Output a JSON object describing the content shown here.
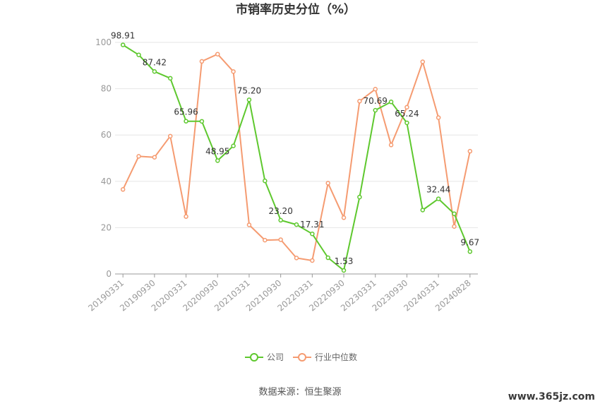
{
  "chart_data": {
    "type": "line",
    "title": "市销率历史分位（%）",
    "ylim": [
      0,
      100
    ],
    "yticks": [
      0,
      20,
      40,
      60,
      80,
      100
    ],
    "grid": true,
    "legend_position": "bottom",
    "x_tick_labels": [
      "20190331",
      "20190930",
      "20200331",
      "20200930",
      "20210331",
      "20210930",
      "20220331",
      "20220930",
      "20230331",
      "20230930",
      "20240331",
      "20240828"
    ],
    "x_tick_indices": [
      0,
      2,
      4,
      6,
      8,
      10,
      12,
      14,
      16,
      18,
      20,
      22
    ],
    "x_count": 23,
    "series": [
      {
        "name": "公司",
        "color": "#5ec82e",
        "values": [
          98.91,
          94.6,
          87.42,
          84.5,
          65.96,
          65.9,
          48.95,
          55.3,
          75.2,
          40.2,
          23.2,
          21.3,
          17.31,
          7.0,
          1.53,
          33.2,
          70.69,
          74.3,
          65.24,
          27.6,
          32.44,
          26.0,
          9.67
        ],
        "labels": {
          "0": "98.91",
          "2": "87.42",
          "4": "65.96",
          "6": "48.95",
          "8": "75.20",
          "10": "23.20",
          "12": "17.31",
          "14": "1.53",
          "16": "70.69",
          "18": "65.24",
          "20": "32.44",
          "22": "9.67"
        }
      },
      {
        "name": "行业中位数",
        "color": "#f59b71",
        "values": [
          36.5,
          50.8,
          50.4,
          59.5,
          24.8,
          91.8,
          94.9,
          87.4,
          21.2,
          14.6,
          14.8,
          6.9,
          5.8,
          39.2,
          24.3,
          74.6,
          79.8,
          55.7,
          72.0,
          91.6,
          67.5,
          20.5,
          53.0
        ]
      }
    ]
  },
  "source_text": "数据来源：恒生聚源",
  "watermark": "www.365jz.com"
}
